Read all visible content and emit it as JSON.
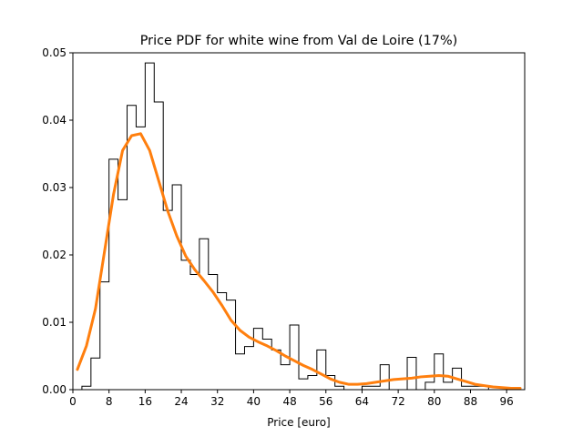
{
  "chart_data": {
    "type": "step-histogram-with-density",
    "title": "Price PDF for white wine from Val de Loire (17%)",
    "xlabel": "Price [euro]",
    "ylabel": "",
    "xlim": [
      0,
      100
    ],
    "ylim": [
      0,
      0.05
    ],
    "x_ticks": [
      0,
      8,
      16,
      24,
      32,
      40,
      48,
      56,
      64,
      72,
      80,
      88,
      96
    ],
    "y_ticks": [
      0.0,
      0.01,
      0.02,
      0.03,
      0.04,
      0.05
    ],
    "y_tick_labels": [
      "0.00",
      "0.01",
      "0.02",
      "0.03",
      "0.04",
      "0.05"
    ],
    "grid": false,
    "legend": "none",
    "histogram": {
      "color": "#000000",
      "bin_edges": [
        2,
        4,
        6,
        8,
        10,
        12,
        14,
        16,
        18,
        20,
        22,
        24,
        26,
        28,
        30,
        32,
        34,
        36,
        38,
        40,
        42,
        44,
        46,
        48,
        50,
        52,
        54,
        56,
        58,
        60,
        62,
        64,
        66,
        68,
        70,
        72,
        74,
        76,
        78,
        80,
        82,
        84,
        86,
        88,
        90,
        92,
        94,
        96,
        98,
        100
      ],
      "values": [
        0.0005,
        0.0047,
        0.016,
        0.0342,
        0.0282,
        0.0422,
        0.039,
        0.0485,
        0.0427,
        0.0266,
        0.0304,
        0.0192,
        0.0171,
        0.0224,
        0.0171,
        0.0144,
        0.0133,
        0.0053,
        0.0064,
        0.0091,
        0.0075,
        0.0059,
        0.0037,
        0.0096,
        0.0016,
        0.0021,
        0.0059,
        0.0021,
        0.0005,
        0,
        0,
        0.0005,
        0.0005,
        0.0037,
        0,
        0,
        0.0048,
        0,
        0.0011,
        0.0053,
        0.0011,
        0.0032,
        0.0005,
        0.0005,
        0.0005,
        0,
        0,
        0,
        0
      ]
    },
    "density": {
      "color": "#ff7f0e",
      "x": [
        1,
        3,
        5,
        7,
        9,
        11,
        13,
        15,
        17,
        19,
        21,
        23,
        25,
        27,
        29,
        31,
        33,
        35,
        37,
        39,
        41,
        43,
        45,
        47,
        49,
        51,
        53,
        55,
        57,
        59,
        61,
        63,
        65,
        67,
        69,
        71,
        73,
        75,
        77,
        79,
        81,
        83,
        85,
        87,
        89,
        91,
        93,
        95,
        97,
        99
      ],
      "y": [
        0.003,
        0.0065,
        0.012,
        0.0205,
        0.029,
        0.0355,
        0.0377,
        0.038,
        0.0355,
        0.031,
        0.0265,
        0.0228,
        0.0198,
        0.0178,
        0.0162,
        0.0145,
        0.0125,
        0.0103,
        0.0088,
        0.0078,
        0.0071,
        0.0065,
        0.0058,
        0.005,
        0.0043,
        0.0036,
        0.003,
        0.0023,
        0.0016,
        0.0011,
        0.0008,
        0.0008,
        0.0009,
        0.0011,
        0.0013,
        0.0015,
        0.0016,
        0.0017,
        0.0019,
        0.002,
        0.0021,
        0.002,
        0.0016,
        0.0012,
        0.0008,
        0.0006,
        0.0004,
        0.0003,
        0.0002,
        0.0002
      ]
    }
  }
}
